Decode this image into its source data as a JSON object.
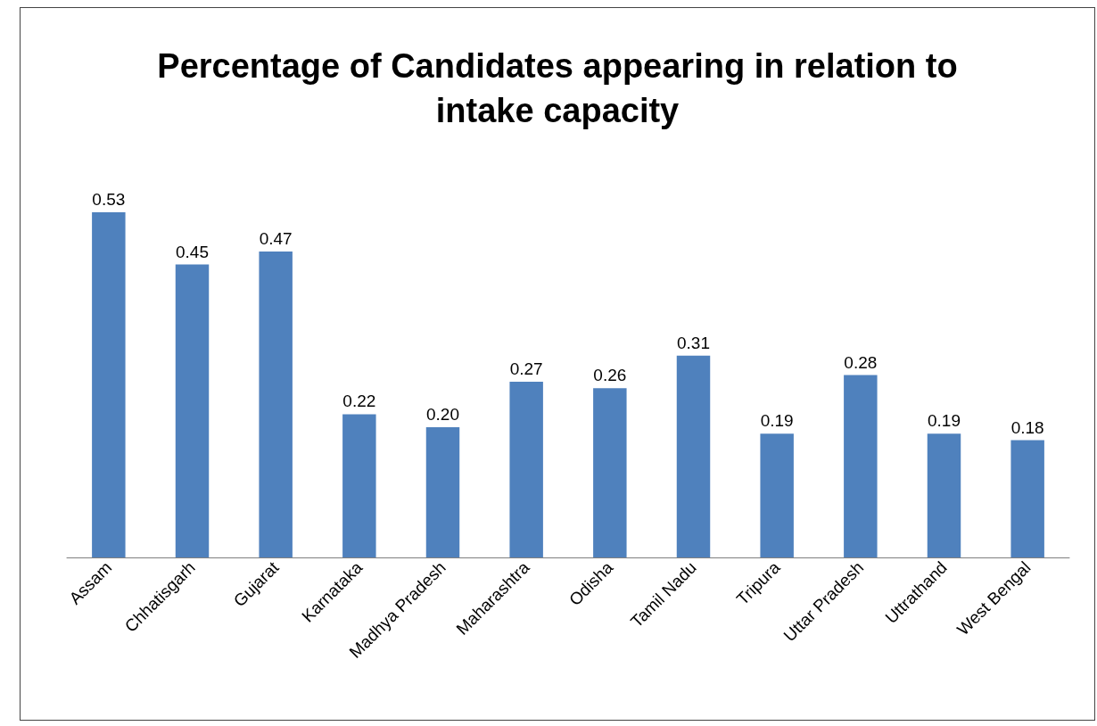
{
  "chart_data": {
    "type": "bar",
    "title": "Percentage of Candidates appearing in relation to\nintake capacity",
    "categories": [
      "Assam",
      "Chhatisgarh",
      "Gujarat",
      "Karnataka",
      "Madhya Pradesh",
      "Maharashtra",
      "Odisha",
      "Tamil Nadu",
      "Tripura",
      "Uttar Pradesh",
      "Uttrathand",
      "West Bengal"
    ],
    "values": [
      0.53,
      0.45,
      0.47,
      0.22,
      0.2,
      0.27,
      0.26,
      0.31,
      0.19,
      0.28,
      0.19,
      0.18
    ],
    "value_labels": [
      "0.53",
      "0.45",
      "0.47",
      "0.22",
      "0.20",
      "0.27",
      "0.26",
      "0.31",
      "0.19",
      "0.28",
      "0.19",
      "0.18"
    ],
    "color": "#4f81bd",
    "tick_labels": "x",
    "grid": false
  }
}
